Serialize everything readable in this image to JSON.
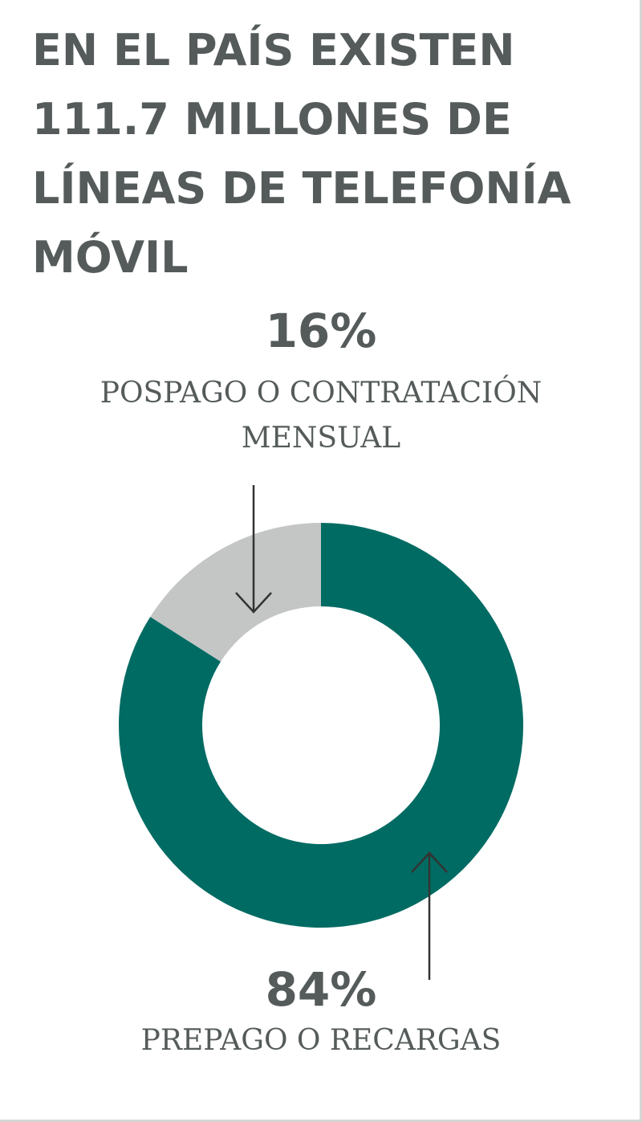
{
  "chart_data": {
    "type": "donut",
    "title": "EN EL PAÍS EXISTEN\n111.7 MILLONES DE\nLÍNEAS DE TELEFONÍA\nMÓVIL",
    "categories": [
      "PREPAGO O RECARGAS",
      "POSPAGO O CONTRATACIÓN\nMENSUAL"
    ],
    "values": [
      84,
      16
    ],
    "value_labels": [
      "84%",
      "16%"
    ],
    "colors": [
      "#006b63",
      "#c3c6c5"
    ]
  }
}
